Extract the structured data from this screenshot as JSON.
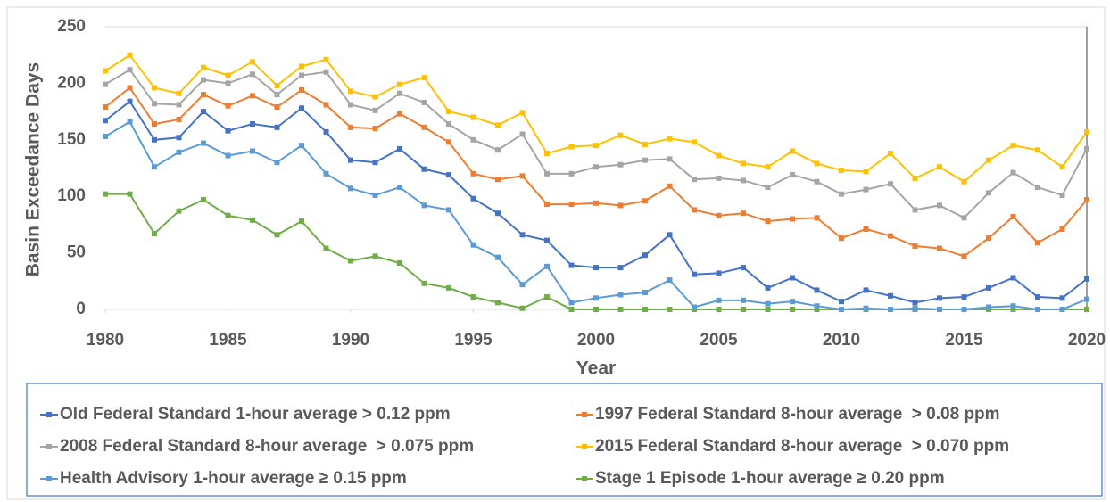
{
  "chart_data": {
    "type": "line",
    "x_label": "Year",
    "y_label": "Basin Exceedance Days",
    "x": [
      1980,
      1981,
      1982,
      1983,
      1984,
      1985,
      1986,
      1987,
      1988,
      1989,
      1990,
      1991,
      1992,
      1993,
      1994,
      1995,
      1996,
      1997,
      1998,
      1999,
      2000,
      2001,
      2002,
      2003,
      2004,
      2005,
      2006,
      2007,
      2008,
      2009,
      2010,
      2011,
      2012,
      2013,
      2014,
      2015,
      2016,
      2017,
      2018,
      2019,
      2020
    ],
    "xlim": [
      1980,
      2020
    ],
    "xticks": [
      1980,
      1985,
      1990,
      1995,
      2000,
      2005,
      2010,
      2015,
      2020
    ],
    "ylim": [
      0,
      250
    ],
    "yticks": [
      0,
      50,
      100,
      150,
      200,
      250
    ],
    "grid": false,
    "legend": "bottom",
    "series": [
      {
        "name": "Old Federal Standard 1-hour average > 0.12 ppm",
        "color": "#4472c4",
        "values": [
          167,
          184,
          150,
          152,
          175,
          158,
          164,
          161,
          178,
          157,
          132,
          130,
          142,
          124,
          119,
          98,
          85,
          66,
          61,
          39,
          37,
          37,
          48,
          66,
          31,
          32,
          37,
          19,
          28,
          17,
          7,
          17,
          12,
          6,
          10,
          11,
          19,
          28,
          11,
          10,
          27
        ]
      },
      {
        "name": "1997 Federal Standard 8-hour average  > 0.08 ppm",
        "color": "#ed7d31",
        "values": [
          179,
          196,
          164,
          168,
          190,
          180,
          189,
          179,
          194,
          181,
          161,
          160,
          173,
          161,
          148,
          120,
          115,
          118,
          93,
          93,
          94,
          92,
          96,
          109,
          88,
          83,
          85,
          78,
          80,
          81,
          63,
          71,
          65,
          56,
          54,
          47,
          63,
          82,
          59,
          71,
          97
        ]
      },
      {
        "name": "2008 Federal Standard 8-hour average  > 0.075 ppm",
        "color": "#a5a5a5",
        "values": [
          199,
          212,
          182,
          181,
          203,
          200,
          208,
          190,
          207,
          210,
          181,
          176,
          191,
          183,
          164,
          150,
          141,
          155,
          120,
          120,
          126,
          128,
          132,
          133,
          115,
          116,
          114,
          108,
          119,
          113,
          102,
          106,
          111,
          88,
          92,
          81,
          103,
          121,
          108,
          101,
          142
        ]
      },
      {
        "name": "2015 Federal Standard 8-hour average  > 0.070 ppm",
        "color": "#ffc000",
        "values": [
          211,
          225,
          196,
          191,
          214,
          207,
          219,
          198,
          215,
          221,
          193,
          188,
          199,
          205,
          175,
          170,
          163,
          174,
          138,
          144,
          145,
          154,
          146,
          151,
          148,
          136,
          129,
          126,
          140,
          129,
          123,
          122,
          138,
          116,
          126,
          113,
          132,
          145,
          141,
          126,
          157
        ]
      },
      {
        "name": "Health Advisory 1-hour average ≥ 0.15 ppm",
        "color": "#5b9bd5",
        "values": [
          153,
          166,
          126,
          139,
          147,
          136,
          140,
          130,
          145,
          120,
          107,
          101,
          108,
          92,
          88,
          57,
          46,
          22,
          38,
          6,
          10,
          13,
          15,
          26,
          2,
          8,
          8,
          5,
          7,
          3,
          0,
          1,
          0,
          1,
          0,
          0,
          2,
          3,
          0,
          0,
          9
        ]
      },
      {
        "name": "Stage 1 Episode 1-hour average ≥ 0.20 ppm",
        "color": "#70ad47",
        "values": [
          102,
          102,
          67,
          87,
          97,
          83,
          79,
          66,
          78,
          54,
          43,
          47,
          41,
          23,
          19,
          11,
          6,
          1,
          11,
          0,
          0,
          0,
          0,
          0,
          0,
          0,
          0,
          0,
          0,
          0,
          0,
          0,
          0,
          0,
          0,
          0,
          0,
          0,
          0,
          0,
          0
        ]
      }
    ]
  }
}
